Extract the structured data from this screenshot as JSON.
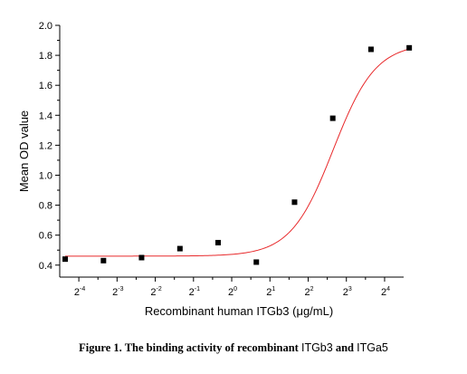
{
  "chart_data": {
    "type": "scatter",
    "xlabel": "Recombinant human ITGb3 (μg/mL)",
    "ylabel": "Mean OD value",
    "x_scale": "log2",
    "xlim": [
      0.0442,
      22.6
    ],
    "ylim": [
      0.32,
      2.0
    ],
    "x_ticks": [
      {
        "value": 0.0625,
        "base": "2",
        "exp": "-4"
      },
      {
        "value": 0.125,
        "base": "2",
        "exp": "-3"
      },
      {
        "value": 0.25,
        "base": "2",
        "exp": "-2"
      },
      {
        "value": 0.5,
        "base": "2",
        "exp": "-1"
      },
      {
        "value": 1,
        "base": "2",
        "exp": "0"
      },
      {
        "value": 2,
        "base": "2",
        "exp": "1"
      },
      {
        "value": 4,
        "base": "2",
        "exp": "2"
      },
      {
        "value": 8,
        "base": "2",
        "exp": "3"
      },
      {
        "value": 16,
        "base": "2",
        "exp": "4"
      }
    ],
    "y_ticks": [
      "0.4",
      "0.6",
      "0.8",
      "1.0",
      "1.2",
      "1.4",
      "1.6",
      "1.8",
      "2.0"
    ],
    "grid": false,
    "points": [
      {
        "x": 0.0488,
        "y": 0.44
      },
      {
        "x": 0.0977,
        "y": 0.43
      },
      {
        "x": 0.195,
        "y": 0.45
      },
      {
        "x": 0.391,
        "y": 0.51
      },
      {
        "x": 0.781,
        "y": 0.55
      },
      {
        "x": 1.5625,
        "y": 0.42
      },
      {
        "x": 3.125,
        "y": 0.82
      },
      {
        "x": 6.25,
        "y": 1.38
      },
      {
        "x": 12.5,
        "y": 1.84
      },
      {
        "x": 25,
        "y": 1.85
      }
    ],
    "fit_curve": {
      "bottom": 0.46,
      "top": 1.88,
      "ec50": 6.3,
      "hill": 2.6
    },
    "colors": {
      "points": "#000000",
      "curve": "#e8292b",
      "axis": "#000000"
    }
  },
  "caption": {
    "part1": "Figure 1. The binding activity of recombinant ",
    "part2": "ITGb3",
    "part3": " and ",
    "part4": "ITGa5"
  }
}
